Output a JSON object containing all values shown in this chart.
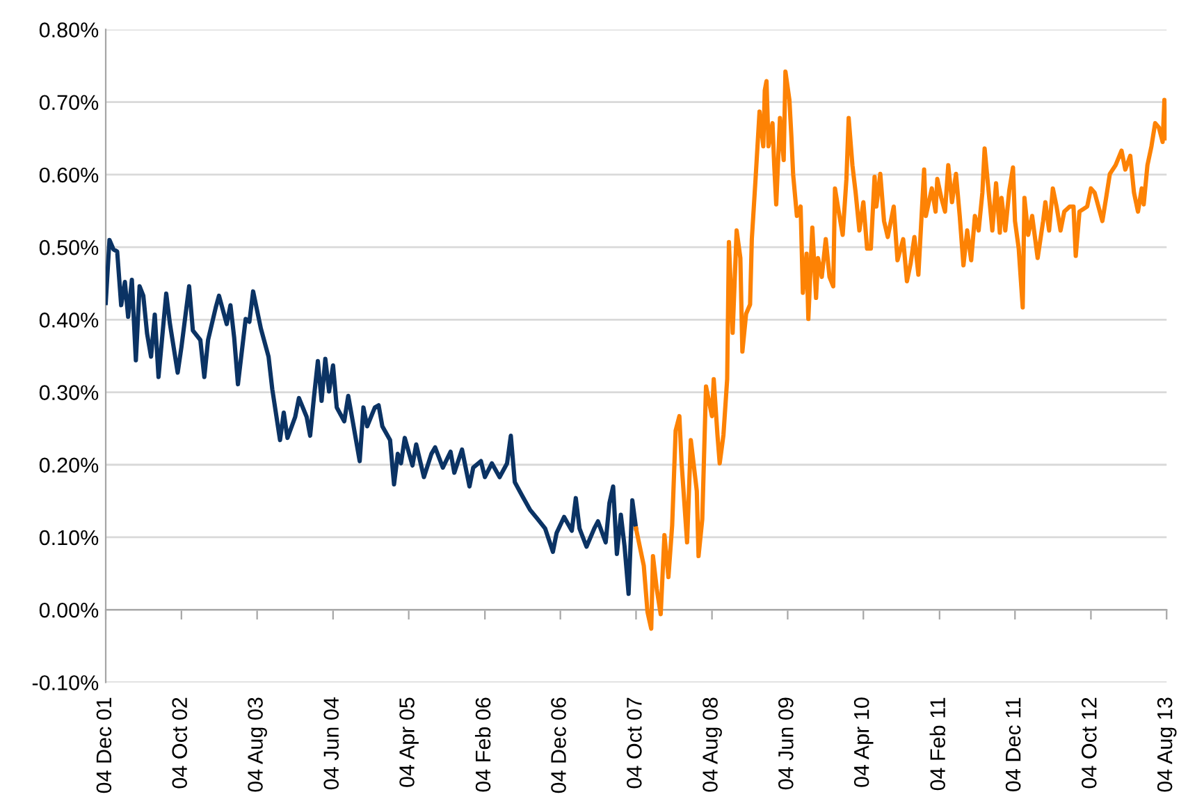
{
  "chart_data": {
    "type": "line",
    "xlim": [
      "2001-12-04",
      "2013-08-04"
    ],
    "ylim": [
      -0.1,
      0.8
    ],
    "xticks": [
      {
        "value": "2001-12-04",
        "label": "04 Dec 01"
      },
      {
        "value": "2002-10-04",
        "label": "04 Oct 02"
      },
      {
        "value": "2003-08-04",
        "label": "04 Aug 03"
      },
      {
        "value": "2004-06-04",
        "label": "04 Jun 04"
      },
      {
        "value": "2005-04-04",
        "label": "04 Apr 05"
      },
      {
        "value": "2006-02-04",
        "label": "04 Feb 06"
      },
      {
        "value": "2006-12-04",
        "label": "04 Dec 06"
      },
      {
        "value": "2007-10-04",
        "label": "04 Oct 07"
      },
      {
        "value": "2008-08-04",
        "label": "04 Aug 08"
      },
      {
        "value": "2009-06-04",
        "label": "04 Jun 09"
      },
      {
        "value": "2010-04-04",
        "label": "04 Apr 10"
      },
      {
        "value": "2011-02-04",
        "label": "04 Feb 11"
      },
      {
        "value": "2011-12-04",
        "label": "04 Dec 11"
      },
      {
        "value": "2012-10-04",
        "label": "04 Oct 12"
      },
      {
        "value": "2013-08-04",
        "label": "04 Aug 13"
      }
    ],
    "yticks": [
      {
        "value": -0.1,
        "label": "-0.10%"
      },
      {
        "value": 0,
        "label": "0.00%"
      },
      {
        "value": 0.1,
        "label": "0.10%"
      },
      {
        "value": 0.2,
        "label": "0.20%"
      },
      {
        "value": 0.3,
        "label": "0.30%"
      },
      {
        "value": 0.4,
        "label": "0.40%"
      },
      {
        "value": 0.5,
        "label": "0.50%"
      },
      {
        "value": 0.6,
        "label": "0.60%"
      },
      {
        "value": 0.7,
        "label": "0.70%"
      },
      {
        "value": 0.8,
        "label": "0.80%"
      }
    ],
    "grid": "y",
    "marker": "none",
    "line_style": "solid",
    "series": [
      {
        "color": "#0b3364",
        "x": [
          "2001-12-04",
          "2001-12-19",
          "2002-01-04",
          "2002-01-19",
          "2002-02-04",
          "2002-02-19",
          "2002-03-04",
          "2002-03-19",
          "2002-04-04",
          "2002-04-19",
          "2002-05-04",
          "2002-05-19",
          "2002-06-04",
          "2002-06-19",
          "2002-07-04",
          "2002-08-04",
          "2002-08-19",
          "2002-09-19",
          "2002-10-04",
          "2002-11-04",
          "2002-11-19",
          "2002-12-19",
          "2003-01-04",
          "2003-01-19",
          "2003-02-19",
          "2003-03-04",
          "2003-04-04",
          "2003-04-19",
          "2003-05-04",
          "2003-05-19",
          "2003-06-19",
          "2003-07-04",
          "2003-07-19",
          "2003-08-19",
          "2003-09-19",
          "2003-10-04",
          "2003-11-04",
          "2003-11-19",
          "2003-12-04",
          "2004-01-04",
          "2004-01-19",
          "2004-02-19",
          "2004-03-04",
          "2004-03-19",
          "2004-04-04",
          "2004-04-19",
          "2004-05-04",
          "2004-05-19",
          "2004-06-04",
          "2004-06-19",
          "2004-07-19",
          "2004-08-04",
          "2004-08-19",
          "2004-09-19",
          "2004-10-04",
          "2004-10-19",
          "2004-11-19",
          "2004-12-04",
          "2004-12-19",
          "2005-01-19",
          "2005-02-04",
          "2005-02-19",
          "2005-03-04",
          "2005-03-19",
          "2005-04-19",
          "2005-05-04",
          "2005-06-04",
          "2005-07-04",
          "2005-07-19",
          "2005-08-19",
          "2005-09-19",
          "2005-10-04",
          "2005-11-04",
          "2005-12-04",
          "2005-12-19",
          "2006-01-19",
          "2006-02-04",
          "2006-03-04",
          "2006-04-04",
          "2006-05-04",
          "2006-05-19",
          "2006-06-04",
          "2006-07-04",
          "2006-08-04",
          "2006-09-04",
          "2006-10-04",
          "2006-11-04",
          "2006-11-19",
          "2006-12-19",
          "2007-01-19",
          "2007-02-04",
          "2007-02-19",
          "2007-03-19",
          "2007-04-19",
          "2007-05-04",
          "2007-06-04",
          "2007-06-19",
          "2007-07-04",
          "2007-07-19",
          "2007-08-04",
          "2007-08-19",
          "2007-09-04",
          "2007-09-19",
          "2007-10-04"
        ],
        "values": [
          0.423,
          0.51,
          0.497,
          0.494,
          0.42,
          0.452,
          0.404,
          0.455,
          0.344,
          0.446,
          0.433,
          0.381,
          0.349,
          0.407,
          0.321,
          0.436,
          0.394,
          0.327,
          0.362,
          0.446,
          0.385,
          0.372,
          0.321,
          0.372,
          0.417,
          0.433,
          0.394,
          0.42,
          0.375,
          0.311,
          0.401,
          0.397,
          0.439,
          0.388,
          0.349,
          0.304,
          0.234,
          0.272,
          0.237,
          0.266,
          0.292,
          0.266,
          0.24,
          0.292,
          0.343,
          0.288,
          0.346,
          0.301,
          0.337,
          0.279,
          0.26,
          0.295,
          0.266,
          0.205,
          0.279,
          0.253,
          0.279,
          0.282,
          0.253,
          0.234,
          0.173,
          0.215,
          0.202,
          0.237,
          0.199,
          0.228,
          0.183,
          0.215,
          0.224,
          0.196,
          0.218,
          0.189,
          0.221,
          0.17,
          0.196,
          0.205,
          0.183,
          0.202,
          0.183,
          0.202,
          0.24,
          0.176,
          0.157,
          0.138,
          0.125,
          0.112,
          0.08,
          0.106,
          0.128,
          0.109,
          0.154,
          0.112,
          0.087,
          0.112,
          0.122,
          0.093,
          0.147,
          0.17,
          0.077,
          0.131,
          0.087,
          0.022,
          0.151,
          0.112
        ]
      },
      {
        "color": "#fd8204",
        "x": [
          "2007-10-04",
          "2007-11-04",
          "2007-11-19",
          "2007-12-04",
          "2007-12-11",
          "2007-12-26",
          "2008-01-11",
          "2008-01-26",
          "2008-02-11",
          "2008-02-26",
          "2008-03-11",
          "2008-03-26",
          "2008-04-04",
          "2008-04-26",
          "2008-05-11",
          "2008-06-04",
          "2008-06-11",
          "2008-06-26",
          "2008-07-11",
          "2008-08-04",
          "2008-08-11",
          "2008-08-26",
          "2008-09-04",
          "2008-09-19",
          "2008-10-04",
          "2008-10-11",
          "2008-10-26",
          "2008-11-11",
          "2008-11-26",
          "2008-12-04",
          "2008-12-19",
          "2009-01-04",
          "2009-01-11",
          "2009-01-26",
          "2009-02-11",
          "2009-02-26",
          "2009-03-04",
          "2009-03-11",
          "2009-03-19",
          "2009-04-04",
          "2009-04-11",
          "2009-04-19",
          "2009-05-04",
          "2009-05-19",
          "2009-05-26",
          "2009-06-11",
          "2009-06-19",
          "2009-06-26",
          "2009-07-11",
          "2009-07-26",
          "2009-08-04",
          "2009-08-19",
          "2009-08-26",
          "2009-09-11",
          "2009-09-26",
          "2009-10-04",
          "2009-10-19",
          "2009-11-04",
          "2009-11-19",
          "2009-12-04",
          "2009-12-11",
          "2009-12-26",
          "2010-01-11",
          "2010-01-26",
          "2010-02-04",
          "2010-02-19",
          "2010-03-04",
          "2010-03-19",
          "2010-04-04",
          "2010-04-19",
          "2010-05-04",
          "2010-05-19",
          "2010-05-26",
          "2010-06-11",
          "2010-06-26",
          "2010-07-11",
          "2010-08-04",
          "2010-08-19",
          "2010-09-11",
          "2010-09-26",
          "2010-10-11",
          "2010-10-26",
          "2010-11-11",
          "2010-12-04",
          "2010-12-11",
          "2011-01-04",
          "2011-01-19",
          "2011-01-26",
          "2011-02-11",
          "2011-02-26",
          "2011-03-11",
          "2011-03-26",
          "2011-04-11",
          "2011-04-26",
          "2011-05-11",
          "2011-05-26",
          "2011-06-11",
          "2011-06-26",
          "2011-07-11",
          "2011-07-26",
          "2011-08-04",
          "2011-08-19",
          "2011-09-04",
          "2011-09-19",
          "2011-10-04",
          "2011-10-11",
          "2011-10-26",
          "2011-11-11",
          "2011-11-26",
          "2011-12-04",
          "2011-12-19",
          "2012-01-04",
          "2012-01-11",
          "2012-01-26",
          "2012-02-11",
          "2012-03-04",
          "2012-03-26",
          "2012-04-04",
          "2012-04-19",
          "2012-05-04",
          "2012-05-19",
          "2012-06-04",
          "2012-06-19",
          "2012-07-11",
          "2012-07-26",
          "2012-08-04",
          "2012-08-19",
          "2012-09-19",
          "2012-10-04",
          "2012-10-19",
          "2012-11-19",
          "2012-12-04",
          "2012-12-19",
          "2013-01-11",
          "2013-02-04",
          "2013-02-19",
          "2013-03-11",
          "2013-03-26",
          "2013-04-11",
          "2013-04-26",
          "2013-05-04",
          "2013-05-19",
          "2013-06-04",
          "2013-06-19",
          "2013-07-04",
          "2013-07-19",
          "2013-07-26",
          "2013-08-04"
        ],
        "values": [
          0.112,
          0.061,
          -0.003,
          -0.026,
          0.074,
          0.029,
          -0.006,
          0.103,
          0.045,
          0.116,
          0.247,
          0.267,
          0.202,
          0.093,
          0.234,
          0.164,
          0.074,
          0.125,
          0.308,
          0.267,
          0.318,
          0.241,
          0.202,
          0.241,
          0.318,
          0.507,
          0.382,
          0.523,
          0.485,
          0.356,
          0.408,
          0.421,
          0.511,
          0.594,
          0.687,
          0.639,
          0.716,
          0.729,
          0.639,
          0.671,
          0.613,
          0.559,
          0.678,
          0.62,
          0.742,
          0.703,
          0.652,
          0.6,
          0.543,
          0.556,
          0.437,
          0.491,
          0.401,
          0.527,
          0.43,
          0.485,
          0.459,
          0.511,
          0.459,
          0.446,
          0.581,
          0.549,
          0.517,
          0.594,
          0.678,
          0.613,
          0.575,
          0.523,
          0.562,
          0.498,
          0.498,
          0.597,
          0.556,
          0.601,
          0.536,
          0.514,
          0.556,
          0.482,
          0.511,
          0.453,
          0.478,
          0.514,
          0.462,
          0.607,
          0.543,
          0.581,
          0.549,
          0.594,
          0.568,
          0.549,
          0.613,
          0.562,
          0.601,
          0.543,
          0.475,
          0.523,
          0.482,
          0.543,
          0.523,
          0.575,
          0.636,
          0.581,
          0.523,
          0.588,
          0.52,
          0.568,
          0.523,
          0.578,
          0.61,
          0.536,
          0.498,
          0.417,
          0.568,
          0.517,
          0.543,
          0.485,
          0.536,
          0.562,
          0.523,
          0.581,
          0.556,
          0.523,
          0.549,
          0.556,
          0.556,
          0.488,
          0.549,
          0.556,
          0.581,
          0.575,
          0.536,
          0.568,
          0.601,
          0.613,
          0.633,
          0.607,
          0.626,
          0.575,
          0.549,
          0.581,
          0.559,
          0.613,
          0.639,
          0.671,
          0.665,
          0.645,
          0.703,
          0.65
        ]
      }
    ]
  }
}
